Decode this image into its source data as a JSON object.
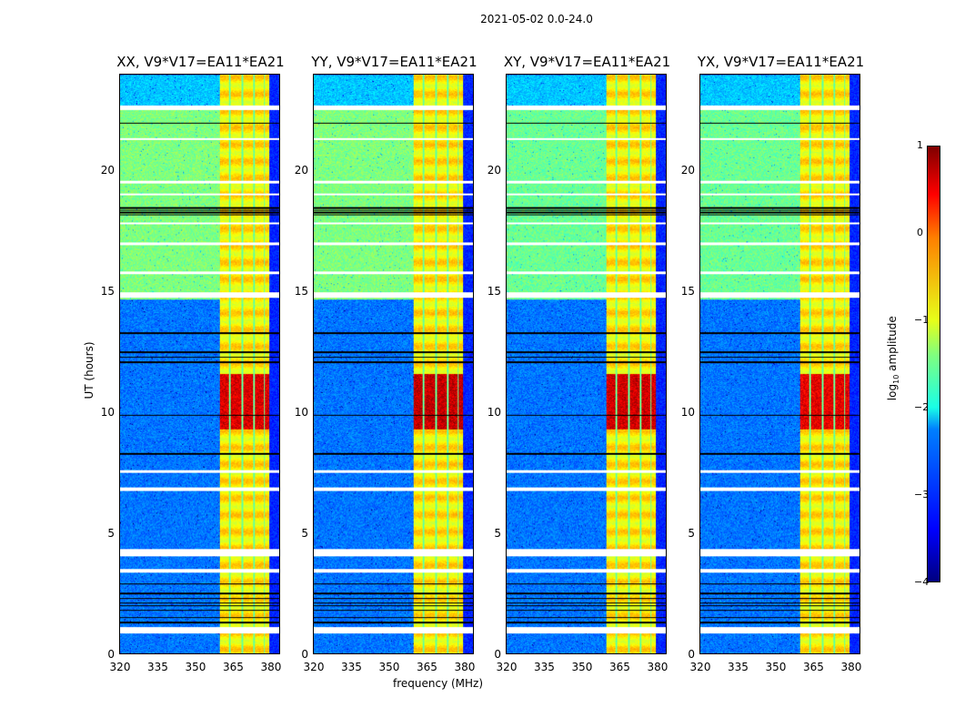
{
  "suptitle": "2021-05-02 0.0-24.0",
  "chart_data": {
    "type": "heatmap",
    "xlabel": "frequency (MHz)",
    "ylabel": "UT (hours)",
    "xlim": [
      320,
      384
    ],
    "ylim": [
      0,
      24
    ],
    "xticks": [
      "320",
      "335",
      "350",
      "365",
      "380"
    ],
    "yticks": [
      "0",
      "5",
      "10",
      "15",
      "20"
    ],
    "colorbar": {
      "label": "log10 amplitude",
      "label_main": "log",
      "label_sub": "10",
      "label_rest": " amplitude",
      "range": [
        -4,
        1
      ],
      "ticks": [
        "1",
        "0",
        "−1",
        "−2",
        "−3",
        "−4"
      ],
      "colormap": "jet"
    },
    "panels": [
      {
        "title": "XX, V9*V17=EA11*EA21",
        "peak": 0.7
      },
      {
        "title": "YY, V9*V17=EA11*EA21",
        "peak": 0.9
      },
      {
        "title": "XY, V9*V17=EA11*EA21",
        "peak": 0.8
      },
      {
        "title": "YX, V9*V17=EA11*EA21",
        "peak": 0.6
      }
    ],
    "background_levels": [
      {
        "t": [
          0,
          14.7
        ],
        "value": -2.8
      },
      {
        "t": [
          14.7,
          22.6
        ],
        "value": -1.5
      },
      {
        "t": [
          22.6,
          24
        ],
        "value": -2.4
      }
    ],
    "rfi_band_MHz": [
      360,
      380
    ],
    "rfi_subbands_MHz": [
      [
        360,
        363.6
      ],
      [
        364.4,
        368.6
      ],
      [
        369.4,
        373.4
      ],
      [
        374.2,
        377.6
      ],
      [
        378.2,
        380
      ]
    ],
    "rfi_level": -0.8,
    "rfi_peak_hours": [
      9.3,
      11.6
    ],
    "flagged_hours": [
      [
        0.85,
        1.1
      ],
      [
        3.35,
        3.5
      ],
      [
        4.05,
        4.35
      ],
      [
        6.75,
        6.9
      ],
      [
        7.5,
        7.6
      ],
      [
        14.75,
        15.0
      ],
      [
        15.75,
        15.85
      ],
      [
        16.95,
        17.05
      ],
      [
        17.8,
        17.9
      ],
      [
        19.0,
        19.1
      ],
      [
        19.5,
        19.6
      ],
      [
        21.3,
        21.4
      ],
      [
        22.55,
        22.75
      ]
    ],
    "dark_hours": [
      1.3,
      1.5,
      1.8,
      2.0,
      2.1,
      2.3,
      2.5,
      2.9,
      12.1,
      12.3,
      12.5,
      13.3,
      18.2,
      18.3,
      18.4,
      18.5,
      22.0,
      9.9,
      8.3
    ]
  }
}
